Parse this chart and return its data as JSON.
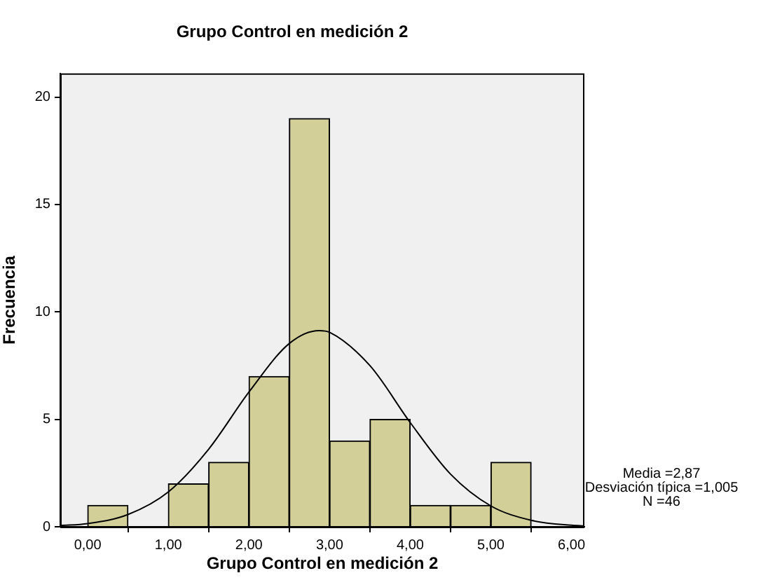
{
  "chart_data": {
    "type": "histogram",
    "title": "Grupo Control en medición 2",
    "xlabel": "Grupo Control en medición 2",
    "ylabel": "Frecuencia",
    "series": [
      {
        "bins": [
          0,
          0.5,
          1,
          1.5,
          2,
          2.5,
          3,
          3.5,
          4,
          4.5,
          5,
          5.5
        ],
        "values": [
          1,
          0,
          2,
          3,
          7,
          19,
          4,
          5,
          1,
          1,
          3
        ],
        "color": "#d3cf99"
      },
      {
        "type": "line",
        "x": [
          -0.34,
          0,
          0.5,
          1,
          1.5,
          2,
          2.5,
          2.87,
          3,
          3.5,
          4,
          4.5,
          5,
          5.5,
          6,
          6.16
        ],
        "values": [
          0.06,
          0.15,
          0.57,
          1.62,
          3.61,
          6.27,
          8.53,
          9.13,
          9.05,
          7.5,
          4.85,
          2.45,
          0.97,
          0.3,
          0.07,
          0.04
        ],
        "color": "#000000",
        "marker": "none"
      }
    ],
    "xlim": [
      -0.34,
      6.16
    ],
    "xticks": [
      {
        "value": 0,
        "label": "0,00"
      },
      {
        "value": 1,
        "label": "1,00"
      },
      {
        "value": 2,
        "label": "2,00"
      },
      {
        "value": 3,
        "label": "3,00"
      },
      {
        "value": 4,
        "label": "4,00"
      },
      {
        "value": 5,
        "label": "5,00"
      },
      {
        "value": 6,
        "label": "6,00"
      }
    ],
    "ylim": [
      0,
      21.1
    ],
    "yticks": [
      0,
      5,
      10,
      15,
      20
    ],
    "grid": false,
    "legend": false,
    "annotations": [
      "Media =2,87",
      "Desviación típica =1,005",
      "N =46"
    ]
  }
}
